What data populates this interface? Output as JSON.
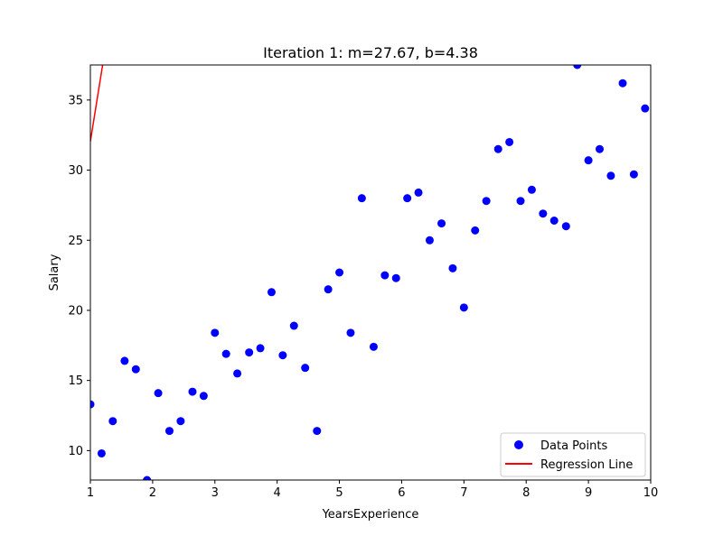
{
  "chart_data": {
    "type": "scatter",
    "title": "Iteration 1: m=27.67, b=4.38",
    "xlabel": "YearsExperience",
    "ylabel": "Salary",
    "xlim": [
      1,
      10
    ],
    "ylim": [
      7.9,
      37.5
    ],
    "xticks": [
      1,
      2,
      3,
      4,
      5,
      6,
      7,
      8,
      9,
      10
    ],
    "yticks": [
      10,
      15,
      20,
      25,
      30,
      35
    ],
    "grid": false,
    "legend_position": "lower-right",
    "series": [
      {
        "name": "Data Points",
        "kind": "scatter",
        "color": "#0000ff",
        "points": [
          [
            1.0,
            13.3
          ],
          [
            1.18,
            9.8
          ],
          [
            1.36,
            12.1
          ],
          [
            1.55,
            16.4
          ],
          [
            1.73,
            15.8
          ],
          [
            1.91,
            7.9
          ],
          [
            2.09,
            14.1
          ],
          [
            2.27,
            11.4
          ],
          [
            2.45,
            12.1
          ],
          [
            2.64,
            14.2
          ],
          [
            2.82,
            13.9
          ],
          [
            3.0,
            18.4
          ],
          [
            3.18,
            16.9
          ],
          [
            3.36,
            15.5
          ],
          [
            3.55,
            17.0
          ],
          [
            3.73,
            17.3
          ],
          [
            3.91,
            21.3
          ],
          [
            4.09,
            16.8
          ],
          [
            4.27,
            18.9
          ],
          [
            4.45,
            15.9
          ],
          [
            4.64,
            11.4
          ],
          [
            4.82,
            21.5
          ],
          [
            5.0,
            22.7
          ],
          [
            5.18,
            18.4
          ],
          [
            5.36,
            28.0
          ],
          [
            5.55,
            17.4
          ],
          [
            5.73,
            22.5
          ],
          [
            5.91,
            22.3
          ],
          [
            6.09,
            28.0
          ],
          [
            6.27,
            28.4
          ],
          [
            6.45,
            25.0
          ],
          [
            6.64,
            26.2
          ],
          [
            6.82,
            23.0
          ],
          [
            7.0,
            20.2
          ],
          [
            7.18,
            25.7
          ],
          [
            7.36,
            27.8
          ],
          [
            7.55,
            31.5
          ],
          [
            7.73,
            32.0
          ],
          [
            7.91,
            27.8
          ],
          [
            8.09,
            28.6
          ],
          [
            8.27,
            26.9
          ],
          [
            8.45,
            26.4
          ],
          [
            8.64,
            26.0
          ],
          [
            8.82,
            37.5
          ],
          [
            9.0,
            30.7
          ],
          [
            9.18,
            31.5
          ],
          [
            9.36,
            29.6
          ],
          [
            9.55,
            36.2
          ],
          [
            9.73,
            29.7
          ],
          [
            9.91,
            34.4
          ]
        ]
      },
      {
        "name": "Regression Line",
        "kind": "line",
        "color": "#ff0000",
        "slope": 27.67,
        "intercept": 4.38
      }
    ]
  }
}
